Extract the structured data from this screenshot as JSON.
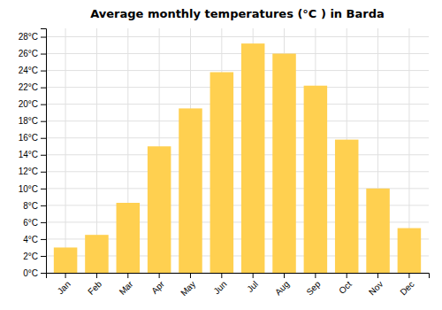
{
  "chart_data": {
    "type": "bar",
    "title": "Average monthly temperatures (°C ) in Barda",
    "categories": [
      "Jan",
      "Feb",
      "Mar",
      "Apr",
      "May",
      "Jun",
      "Jul",
      "Aug",
      "Sep",
      "Oct",
      "Nov",
      "Dec"
    ],
    "values": [
      3,
      4.5,
      8.3,
      15,
      19.5,
      23.8,
      27.2,
      26,
      22.2,
      15.8,
      10,
      5.3
    ],
    "color": "#FFD050",
    "ylim": [
      0,
      29
    ],
    "yticks": [
      {
        "value": 0,
        "label": "0°C"
      },
      {
        "value": 2,
        "label": "2°C"
      },
      {
        "value": 4,
        "label": "4°C"
      },
      {
        "value": 6,
        "label": "6°C"
      },
      {
        "value": 8,
        "label": "8°C"
      },
      {
        "value": 10,
        "label": "10°C"
      },
      {
        "value": 12,
        "label": "12°C"
      },
      {
        "value": 14,
        "label": "14°C"
      },
      {
        "value": 16,
        "label": "16°C"
      },
      {
        "value": 18,
        "label": "18°C"
      },
      {
        "value": 20,
        "label": "20°C"
      },
      {
        "value": 22,
        "label": "22°C"
      },
      {
        "value": 24,
        "label": "24°C"
      },
      {
        "value": 26,
        "label": "26°C"
      },
      {
        "value": 28,
        "label": "28°C"
      }
    ],
    "grid": true
  }
}
